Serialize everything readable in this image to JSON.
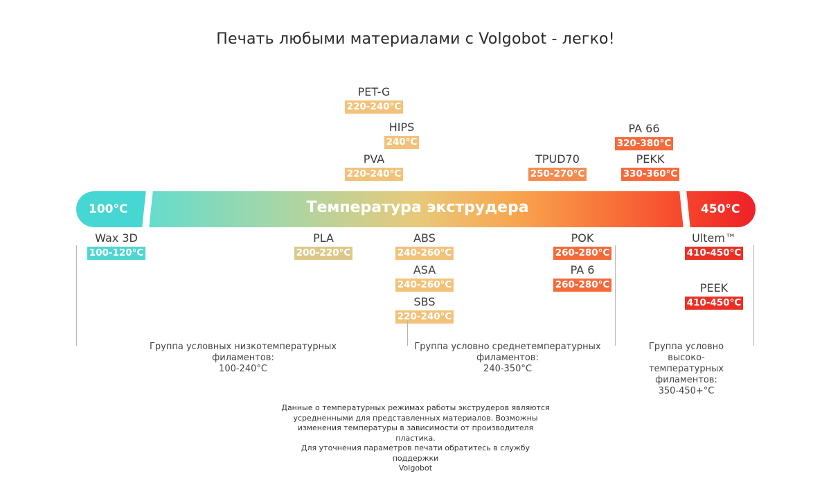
{
  "title": "Печать любыми материалами с Volgobot - легко!",
  "bar": {
    "label": "Температура экструдера",
    "min_label": "100°C",
    "max_label": "450°C"
  },
  "materials": [
    {
      "name": "PET-G",
      "temp": "220-240°C",
      "color": "#f2c27a"
    },
    {
      "name": "HIPS",
      "temp": "240°C",
      "color": "#f2c27a"
    },
    {
      "name": "PVA",
      "temp": "220-240°C",
      "color": "#f2c27a"
    },
    {
      "name": "TPUD70",
      "temp": "250-270°C",
      "color": "#f58b4f"
    },
    {
      "name": "PA 66",
      "temp": "320-380°C",
      "color": "#f56a3b"
    },
    {
      "name": "PEKK",
      "temp": "330-360°C",
      "color": "#f56a3b"
    },
    {
      "name": "Wax 3D",
      "temp": "100-120°C",
      "color": "#4fd6d2"
    },
    {
      "name": "PLA",
      "temp": "200-220°C",
      "color": "#dcc98a"
    },
    {
      "name": "ABS",
      "temp": "240-260°C",
      "color": "#f2c27a"
    },
    {
      "name": "ASA",
      "temp": "240-260°C",
      "color": "#f2c27a"
    },
    {
      "name": "SBS",
      "temp": "220-240°C",
      "color": "#f2c27a"
    },
    {
      "name": "POK",
      "temp": "260-280°C",
      "color": "#f56a3b"
    },
    {
      "name": "PA 6",
      "temp": "260-280°C",
      "color": "#f56a3b"
    },
    {
      "name": "Ultem™",
      "temp": "410-450°C",
      "color": "#ec2f25"
    },
    {
      "name": "PEEK",
      "temp": "410-450°C",
      "color": "#ec2f25"
    }
  ],
  "groups": [
    {
      "lines": [
        "Группа условных низкотемпературных",
        "филаментов:",
        "100-240°C"
      ]
    },
    {
      "lines": [
        "Группа условно среднетемпературных",
        "филаментов:",
        "240-350°C"
      ]
    },
    {
      "lines": [
        "Группа условно",
        "высоко-",
        "температурных",
        "филаментов:",
        "350-450+°C"
      ]
    }
  ],
  "note": [
    "Данные о температурных режимах работы экструдеров являются",
    "усредненными для представленных материалов. Возможны",
    "изменения температуры в зависимости от производителя пластика.",
    "Для уточнения параметров печати обратитесь в службу поддержки",
    "Volgobot"
  ]
}
